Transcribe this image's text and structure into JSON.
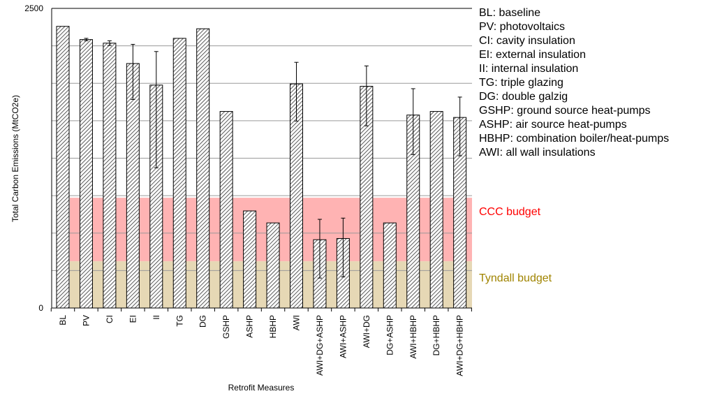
{
  "chart_data": {
    "type": "bar",
    "xlabel": "Retrofit Measures",
    "ylabel": "Total Carbon Emissions (MtCO2e)",
    "ylim": [
      0,
      2500
    ],
    "ytick_labels": [
      "0",
      "2500"
    ],
    "grid": true,
    "categories": [
      "BL",
      "PV",
      "CI",
      "EI",
      "II",
      "TG",
      "DG",
      "GSHP",
      "ASHP",
      "HBHP",
      "AWI",
      "AWI+DG+ASHP",
      "AWI+ASHP",
      "AWI+DG",
      "DG+ASHP",
      "AWI+HBHP",
      "DG+HBHP",
      "AWI+DG+HBHP"
    ],
    "values": [
      2350,
      2240,
      2210,
      2040,
      1860,
      2250,
      2330,
      1640,
      810,
      710,
      1870,
      570,
      580,
      1850,
      710,
      1610,
      1640,
      1590
    ],
    "error_bars": [
      null,
      [
        2230,
        2250
      ],
      [
        2190,
        2230
      ],
      [
        1740,
        2200
      ],
      [
        1170,
        2140
      ],
      null,
      null,
      null,
      null,
      null,
      [
        1560,
        2050
      ],
      [
        250,
        740
      ],
      [
        260,
        750
      ],
      [
        1520,
        2020
      ],
      null,
      [
        1280,
        1830
      ],
      null,
      [
        1270,
        1760
      ]
    ],
    "bands": [
      {
        "name": "CCC budget",
        "from": 390,
        "to": 920,
        "color": "#ffb3b3",
        "label_color": "#ff0000"
      },
      {
        "name": "Tyndall budget",
        "from": 0,
        "to": 390,
        "color": "#e6d8b5",
        "label_color": "#a08400"
      }
    ],
    "bar_fill": "hatched"
  },
  "legend_lines": [
    "BL: baseline",
    "PV: photovoltaics",
    "CI: cavity insulation",
    "EI: external insulation",
    "II: internal insulation",
    "TG: triple glazing",
    "DG: double galzig",
    "GSHP: ground source heat-pumps",
    "ASHP: air source heat-pumps",
    "HBHP: combination boiler/heat-pumps",
    "AWI: all wall insulations"
  ]
}
